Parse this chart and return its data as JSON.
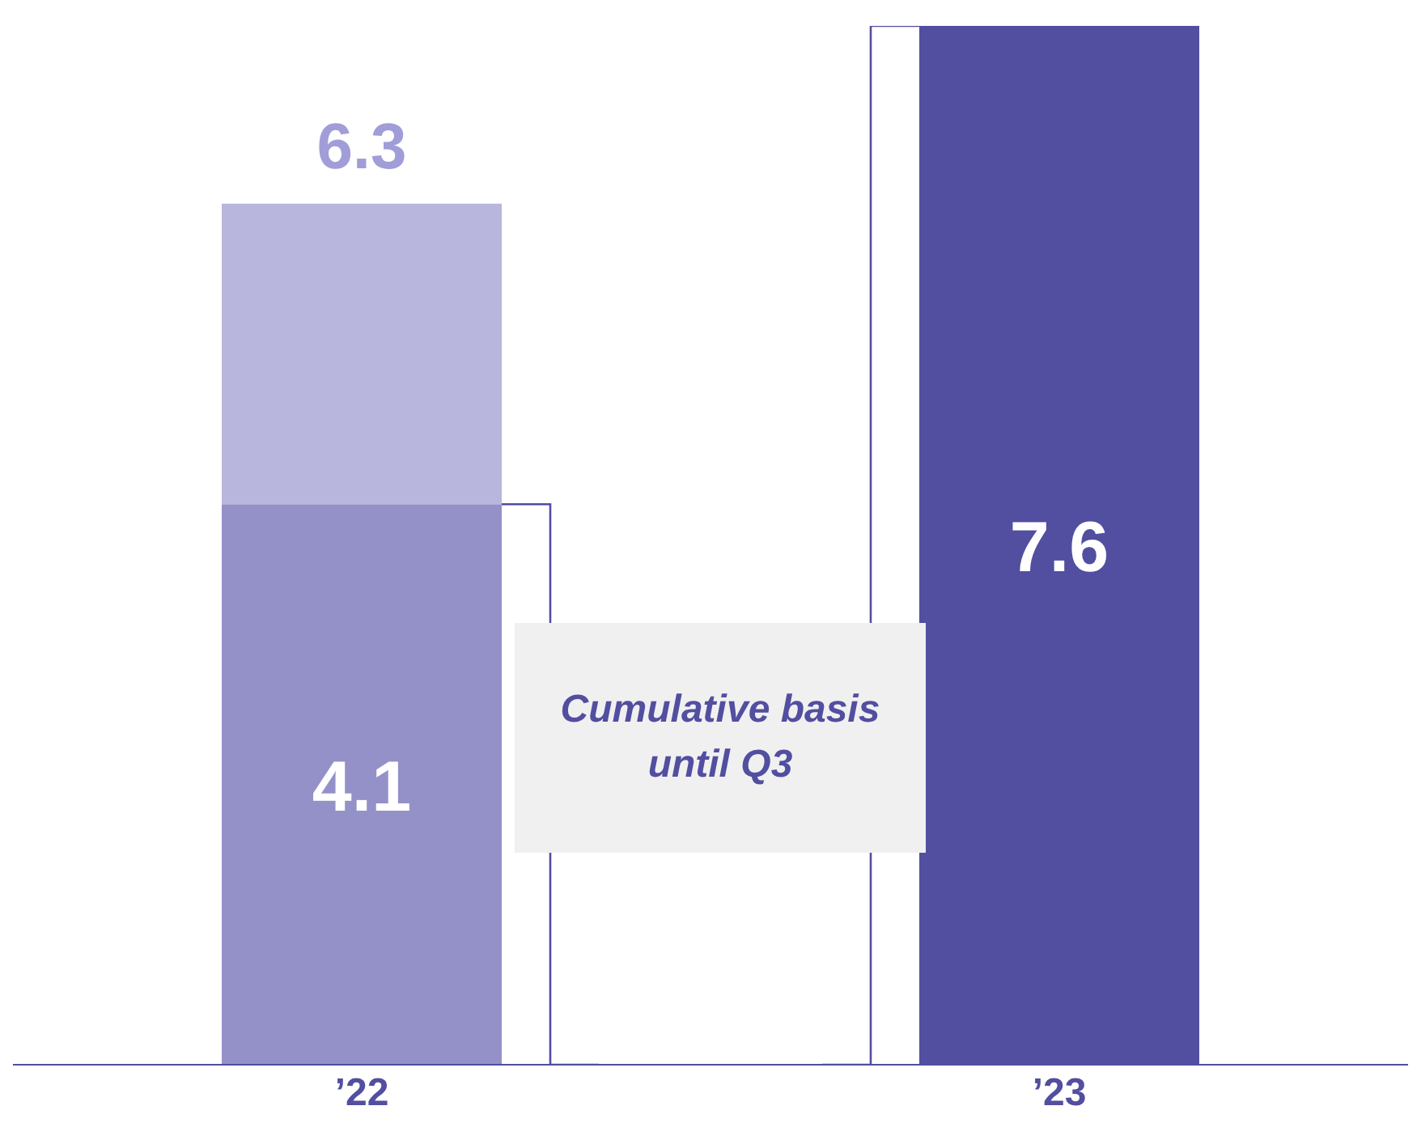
{
  "chart_data": {
    "type": "bar",
    "categories": [
      "’22",
      "’23"
    ],
    "stacked": true,
    "series": [
      {
        "values": [
          4.1,
          7.6
        ],
        "colors": [
          "#9491c8",
          "#524ea0"
        ],
        "value_labels": [
          "4.1",
          "7.6"
        ]
      },
      {
        "values": [
          2.2,
          null
        ],
        "color": "#b8b6dc"
      }
    ],
    "totals": [
      "6.3",
      null
    ],
    "tick_labels": "x",
    "annotations": [
      "Cumulative basis until Q3"
    ]
  }
}
